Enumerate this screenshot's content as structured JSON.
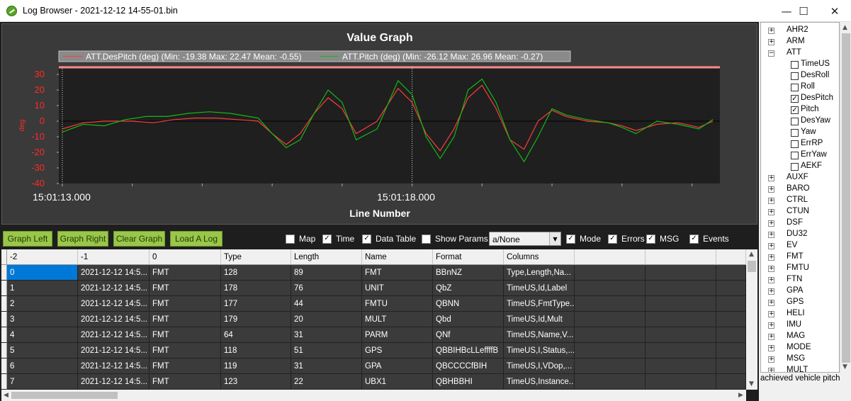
{
  "window": {
    "title": "Log Browser - 2021-12-12 14-55-01.bin",
    "minimize": "—",
    "maximize": "☐",
    "close": "✕"
  },
  "graph": {
    "title": "Value Graph",
    "xlabel": "Line Number",
    "ylabel": "deg",
    "legend": [
      {
        "label": "ATT.DesPitch (deg) (Min: -19.38 Max: 22.47 Mean: -0.55)",
        "color": "#ff3b3b"
      },
      {
        "label": "ATT.Pitch (deg) (Min: -26.12 Max: 26.96 Mean: -0.27)",
        "color": "#14b814"
      }
    ],
    "x_tick_labels": [
      "15:01:13.000",
      "15:01:18.000"
    ],
    "y_ticks": [
      "30",
      "20",
      "10",
      "0",
      "-10",
      "-20",
      "-30",
      "-40"
    ]
  },
  "chart_data": {
    "type": "line",
    "title": "Value Graph",
    "xlabel": "Line Number",
    "ylabel": "deg",
    "ylim": [
      -40,
      35
    ],
    "x_tick_labels": [
      "15:01:13.000",
      "15:01:18.000"
    ],
    "x_range_seconds": [
      -0.05,
      9.4
    ],
    "legend_placement": "top",
    "grid": false,
    "series": [
      {
        "name": "ATT.DesPitch (deg) (Min: -19.38 Max: 22.47 Mean: -0.55)",
        "color": "#ff3b3b",
        "x": [
          0,
          0.3,
          0.6,
          1.0,
          1.3,
          1.6,
          1.9,
          2.2,
          2.5,
          2.8,
          3.0,
          3.2,
          3.4,
          3.6,
          3.8,
          4.0,
          4.2,
          4.5,
          4.8,
          5.0,
          5.2,
          5.4,
          5.6,
          5.8,
          6.0,
          6.2,
          6.4,
          6.6,
          6.8,
          7.0,
          7.2,
          7.5,
          7.8,
          8.0,
          8.2,
          8.5,
          8.8,
          9.1,
          9.3
        ],
        "values": [
          -5,
          -1,
          0,
          0,
          -1,
          1,
          2,
          2,
          1,
          0,
          -8,
          -15,
          -8,
          5,
          15,
          8,
          -8,
          0,
          21,
          12,
          -8,
          -19,
          -5,
          15,
          23,
          8,
          -12,
          -18,
          0,
          7,
          3,
          0,
          -1,
          -3,
          -6,
          -2,
          -1,
          -4,
          0
        ]
      },
      {
        "name": "ATT.Pitch (deg) (Min: -26.12 Max: 26.96 Mean: -0.27)",
        "color": "#14b814",
        "x": [
          0,
          0.3,
          0.6,
          0.9,
          1.2,
          1.5,
          1.8,
          2.1,
          2.4,
          2.8,
          3.0,
          3.2,
          3.4,
          3.6,
          3.8,
          4.0,
          4.2,
          4.5,
          4.8,
          5.0,
          5.2,
          5.4,
          5.6,
          5.8,
          6.0,
          6.2,
          6.4,
          6.6,
          6.8,
          7.0,
          7.2,
          7.5,
          7.8,
          8.0,
          8.2,
          8.5,
          8.8,
          9.1,
          9.3
        ],
        "values": [
          -7,
          -2,
          -3,
          1,
          3,
          3,
          5,
          6,
          5,
          2,
          -8,
          -17,
          -12,
          5,
          20,
          12,
          -12,
          -5,
          26,
          17,
          -10,
          -24,
          -10,
          20,
          27,
          12,
          -12,
          -26,
          -10,
          8,
          4,
          1,
          -1,
          -4,
          -8,
          0,
          -2,
          -5,
          1
        ]
      }
    ]
  },
  "toolbar": {
    "graph_left": "Graph Left",
    "graph_right": "Graph Right",
    "clear_graph": "Clear Graph",
    "load_log": "Load A Log",
    "checks": [
      {
        "label": "Map",
        "checked": false
      },
      {
        "label": "Time",
        "checked": true
      },
      {
        "label": "Data Table",
        "checked": true
      },
      {
        "label": "Show Params",
        "checked": false
      },
      {
        "label": "Mode",
        "checked": true
      },
      {
        "label": "Errors",
        "checked": true
      },
      {
        "label": "MSG",
        "checked": true
      },
      {
        "label": "Events",
        "checked": true
      }
    ],
    "combo_value": "a/None",
    "check_mark": "✓"
  },
  "table": {
    "columns": [
      "-2",
      "-1",
      "0",
      "Type",
      "Length",
      "Name",
      "Format",
      "Columns",
      "",
      "",
      ""
    ],
    "rows": [
      [
        "0",
        "2021-12-12 14:5...",
        "FMT",
        "128",
        "89",
        "FMT",
        "BBnNZ",
        "Type,Length,Na...",
        "",
        "",
        ""
      ],
      [
        "1",
        "2021-12-12 14:5...",
        "FMT",
        "178",
        "76",
        "UNIT",
        "QbZ",
        "TimeUS,Id,Label",
        "",
        "",
        ""
      ],
      [
        "2",
        "2021-12-12 14:5...",
        "FMT",
        "177",
        "44",
        "FMTU",
        "QBNN",
        "TimeUS,FmtType...",
        "",
        "",
        ""
      ],
      [
        "3",
        "2021-12-12 14:5...",
        "FMT",
        "179",
        "20",
        "MULT",
        "Qbd",
        "TimeUS,Id,Mult",
        "",
        "",
        ""
      ],
      [
        "4",
        "2021-12-12 14:5...",
        "FMT",
        "64",
        "31",
        "PARM",
        "QNf",
        "TimeUS,Name,V...",
        "",
        "",
        ""
      ],
      [
        "5",
        "2021-12-12 14:5...",
        "FMT",
        "118",
        "51",
        "GPS",
        "QBBIHBcLLeffffB",
        "TimeUS,I,Status,...",
        "",
        "",
        ""
      ],
      [
        "6",
        "2021-12-12 14:5...",
        "FMT",
        "119",
        "31",
        "GPA",
        "QBCCCCfBIH",
        "TimeUS,I,VDop,...",
        "",
        "",
        ""
      ],
      [
        "7",
        "2021-12-12 14:5...",
        "FMT",
        "123",
        "22",
        "UBX1",
        "QBHBBHI",
        "TimeUS,Instance...",
        "",
        "",
        ""
      ]
    ]
  },
  "tree": {
    "top_items": [
      "AHR2",
      "ARM"
    ],
    "expanded": "ATT",
    "children": [
      {
        "label": "TimeUS",
        "checked": false
      },
      {
        "label": "DesRoll",
        "checked": false
      },
      {
        "label": "Roll",
        "checked": false
      },
      {
        "label": "DesPitch",
        "checked": true
      },
      {
        "label": "Pitch",
        "checked": true
      },
      {
        "label": "DesYaw",
        "checked": false
      },
      {
        "label": "Yaw",
        "checked": false
      },
      {
        "label": "ErrRP",
        "checked": false
      },
      {
        "label": "ErrYaw",
        "checked": false
      },
      {
        "label": "AEKF",
        "checked": false
      }
    ],
    "bottom_items": [
      "AUXF",
      "BARO",
      "CTRL",
      "CTUN",
      "DSF",
      "DU32",
      "EV",
      "FMT",
      "FMTU",
      "FTN",
      "GPA",
      "GPS",
      "HELI",
      "IMU",
      "MAG",
      "MODE",
      "MSG",
      "MULT"
    ],
    "plus": "+",
    "minus": "−",
    "check": "✓"
  },
  "status": {
    "description": "achieved vehicle pitch"
  }
}
